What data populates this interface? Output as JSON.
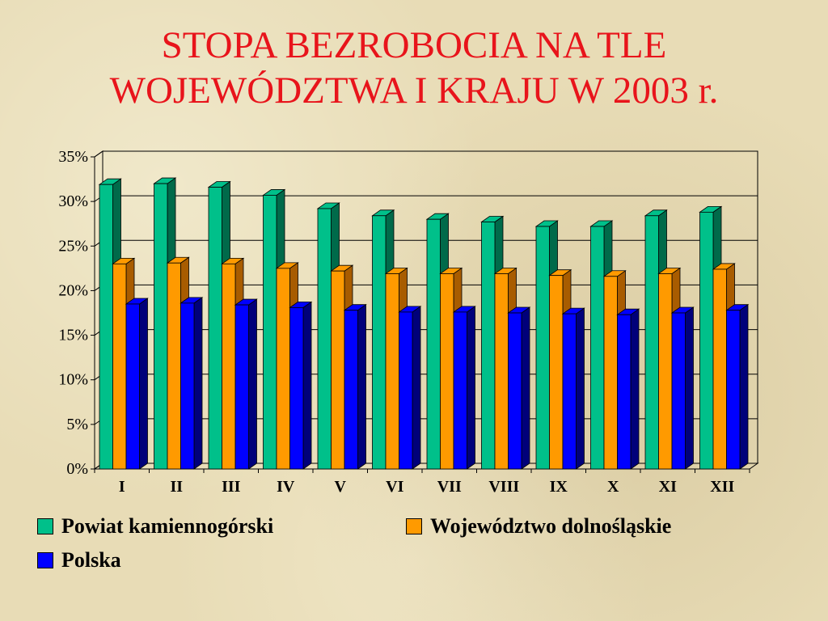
{
  "slide": {
    "title_line1": "STOPA BEZROBOCIA NA TLE",
    "title_line2": "WOJEWÓDZTWA I KRAJU W 2003 r."
  },
  "colors": {
    "title": "#e8141b",
    "series": [
      "#00c08a",
      "#ff9a00",
      "#0000ff"
    ],
    "series_side": [
      "#006a4a",
      "#a85c00",
      "#00007a"
    ]
  },
  "chart_data": {
    "type": "bar",
    "title": "STOPA BEZROBOCIA NA TLE WOJEWÓDZTWA I KRAJU W 2003 r.",
    "categories": [
      "I",
      "II",
      "III",
      "IV",
      "V",
      "VI",
      "VII",
      "VIII",
      "IX",
      "X",
      "XI",
      "XII"
    ],
    "series": [
      {
        "name": "Powiat kamiennogórski",
        "values": [
          31.9,
          32.0,
          31.6,
          30.7,
          29.2,
          28.4,
          28.0,
          27.7,
          27.2,
          27.2,
          28.4,
          28.8
        ]
      },
      {
        "name": "Województwo dolnośląskie",
        "values": [
          23.0,
          23.1,
          23.0,
          22.5,
          22.2,
          21.9,
          21.9,
          21.9,
          21.7,
          21.6,
          21.9,
          22.4
        ]
      },
      {
        "name": "Polska",
        "values": [
          18.5,
          18.6,
          18.4,
          18.1,
          17.8,
          17.6,
          17.6,
          17.5,
          17.4,
          17.3,
          17.5,
          17.8
        ]
      }
    ],
    "yticks": [
      "0%",
      "5%",
      "10%",
      "15%",
      "20%",
      "25%",
      "30%",
      "35%"
    ],
    "ylim": [
      0,
      35
    ],
    "xlabel": "",
    "ylabel": "",
    "grid": true,
    "legend": "bottom"
  }
}
